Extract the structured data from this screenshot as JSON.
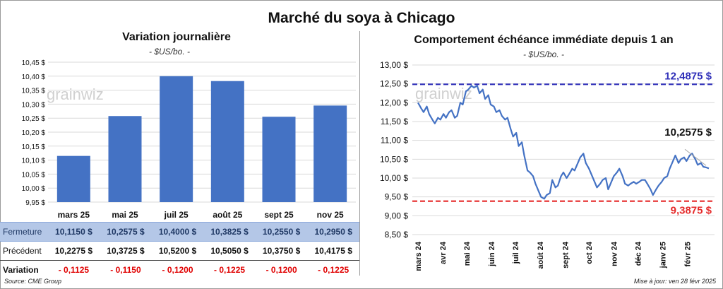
{
  "title": "Marché du soya à Chicago",
  "left": {
    "title": "Variation journalière",
    "subtitle": "- $US/bo. -",
    "watermark": "grainwiz"
  },
  "right": {
    "title": "Comportement  échéance immédiate depuis 1 an",
    "subtitle": "- $US/bo. -",
    "watermark": "grainwiz"
  },
  "table": {
    "rows": [
      {
        "label": "Fermeture",
        "values": [
          "10,1150  $",
          "10,2575  $",
          "10,4000  $",
          "10,3825  $",
          "10,2550  $",
          "10,2950  $"
        ]
      },
      {
        "label": "Précédent",
        "values": [
          "10,2275  $",
          "10,3725  $",
          "10,5200  $",
          "10,5050  $",
          "10,3750  $",
          "10,4175  $"
        ]
      },
      {
        "label": "Variation",
        "values": [
          "- 0,1125",
          "- 0,1150",
          "- 0,1200",
          "- 0,1225",
          "- 0,1200",
          "- 0,1225"
        ]
      }
    ]
  },
  "footer": {
    "source": "Source: CME Group",
    "updated": "Mise à jour: ven 28 févr 2025"
  },
  "chart_data": [
    {
      "type": "bar",
      "title": "Variation journalière",
      "subtitle": "- $US/bo. -",
      "categories": [
        "mars 25",
        "mai 25",
        "juil 25",
        "août 25",
        "sept 25",
        "nov 25"
      ],
      "values": [
        10.115,
        10.2575,
        10.4,
        10.3825,
        10.255,
        10.295
      ],
      "ylim": [
        9.95,
        10.45
      ],
      "yticks": [
        "9,95 $",
        "10,00 $",
        "10,05 $",
        "10,10 $",
        "10,15 $",
        "10,20 $",
        "10,25 $",
        "10,30 $",
        "10,35 $",
        "10,40 $",
        "10,45 $"
      ],
      "grid": true,
      "color": "#4472c4"
    },
    {
      "type": "line",
      "title": "Comportement  échéance immédiate depuis 1 an",
      "subtitle": "- $US/bo. -",
      "ylim": [
        8.5,
        13.0
      ],
      "yticks": [
        "8,50 $",
        "9,00 $",
        "9,50 $",
        "10,00 $",
        "10,50 $",
        "11,00 $",
        "11,50 $",
        "12,00 $",
        "12,50 $",
        "13,00 $"
      ],
      "xticks": [
        "mars 24",
        "avr 24",
        "mai 24",
        "juin 24",
        "juil 24",
        "août 24",
        "sept 24",
        "oct 24",
        "nov 24",
        "déc 24",
        "janv 25",
        "févr 25"
      ],
      "x": [
        "2024-03-01",
        "2024-03-05",
        "2024-03-08",
        "2024-03-12",
        "2024-03-15",
        "2024-03-19",
        "2024-03-22",
        "2024-03-26",
        "2024-03-29",
        "2024-04-02",
        "2024-04-05",
        "2024-04-09",
        "2024-04-12",
        "2024-04-16",
        "2024-04-19",
        "2024-04-23",
        "2024-04-26",
        "2024-04-30",
        "2024-05-03",
        "2024-05-07",
        "2024-05-10",
        "2024-05-14",
        "2024-05-17",
        "2024-05-21",
        "2024-05-24",
        "2024-05-28",
        "2024-05-31",
        "2024-06-04",
        "2024-06-07",
        "2024-06-11",
        "2024-06-14",
        "2024-06-18",
        "2024-06-21",
        "2024-06-25",
        "2024-06-28",
        "2024-07-02",
        "2024-07-05",
        "2024-07-09",
        "2024-07-12",
        "2024-07-16",
        "2024-07-19",
        "2024-07-23",
        "2024-07-26",
        "2024-07-30",
        "2024-08-02",
        "2024-08-06",
        "2024-08-09",
        "2024-08-13",
        "2024-08-16",
        "2024-08-20",
        "2024-08-23",
        "2024-08-27",
        "2024-08-30",
        "2024-09-03",
        "2024-09-06",
        "2024-09-10",
        "2024-09-13",
        "2024-09-17",
        "2024-09-20",
        "2024-09-24",
        "2024-09-27",
        "2024-10-01",
        "2024-10-04",
        "2024-10-08",
        "2024-10-11",
        "2024-10-15",
        "2024-10-18",
        "2024-10-22",
        "2024-10-25",
        "2024-10-29",
        "2024-11-01",
        "2024-11-05",
        "2024-11-08",
        "2024-11-12",
        "2024-11-15",
        "2024-11-19",
        "2024-11-22",
        "2024-11-26",
        "2024-11-29",
        "2024-12-03",
        "2024-12-06",
        "2024-12-10",
        "2024-12-13",
        "2024-12-17",
        "2024-12-20",
        "2024-12-24",
        "2024-12-27",
        "2024-12-31",
        "2025-01-03",
        "2025-01-07",
        "2025-01-10",
        "2025-01-14",
        "2025-01-17",
        "2025-01-21",
        "2025-01-24",
        "2025-01-28",
        "2025-01-31",
        "2025-02-04",
        "2025-02-07",
        "2025-02-11",
        "2025-02-14",
        "2025-02-18",
        "2025-02-21",
        "2025-02-25",
        "2025-02-28"
      ],
      "series": [
        {
          "color": "#4472c4",
          "values": [
            12.0,
            11.85,
            11.75,
            11.9,
            11.7,
            11.55,
            11.45,
            11.6,
            11.55,
            11.7,
            11.6,
            11.75,
            11.8,
            11.6,
            11.65,
            12.0,
            11.95,
            12.3,
            12.35,
            12.45,
            12.4,
            12.45,
            12.25,
            12.35,
            12.1,
            12.2,
            11.95,
            11.9,
            11.75,
            11.8,
            11.65,
            11.55,
            11.6,
            11.3,
            11.1,
            11.2,
            10.85,
            10.95,
            10.6,
            10.2,
            10.15,
            10.05,
            9.85,
            9.65,
            9.5,
            9.45,
            9.55,
            9.6,
            9.95,
            9.75,
            9.8,
            10.05,
            10.15,
            10.0,
            10.1,
            10.25,
            10.2,
            10.4,
            10.55,
            10.65,
            10.4,
            10.25,
            10.1,
            9.9,
            9.75,
            9.85,
            9.95,
            10.0,
            9.7,
            9.9,
            10.05,
            10.15,
            10.25,
            10.05,
            9.85,
            9.8,
            9.85,
            9.9,
            9.85,
            9.9,
            9.95,
            9.95,
            9.85,
            9.7,
            9.55,
            9.7,
            9.8,
            9.9,
            10.0,
            10.05,
            10.25,
            10.45,
            10.6,
            10.4,
            10.5,
            10.55,
            10.45,
            10.6,
            10.65,
            10.5,
            10.35,
            10.4,
            10.3,
            10.28,
            10.2575
          ]
        }
      ],
      "reference_lines": [
        {
          "value": 12.4875,
          "label": "12,4875 $",
          "color": "#2e2eb8"
        },
        {
          "value": 9.3875,
          "label": "9,3875 $",
          "color": "#e52a2a"
        }
      ],
      "last_value": {
        "value": 10.2575,
        "label": "10,2575 $"
      },
      "grid": true
    }
  ]
}
